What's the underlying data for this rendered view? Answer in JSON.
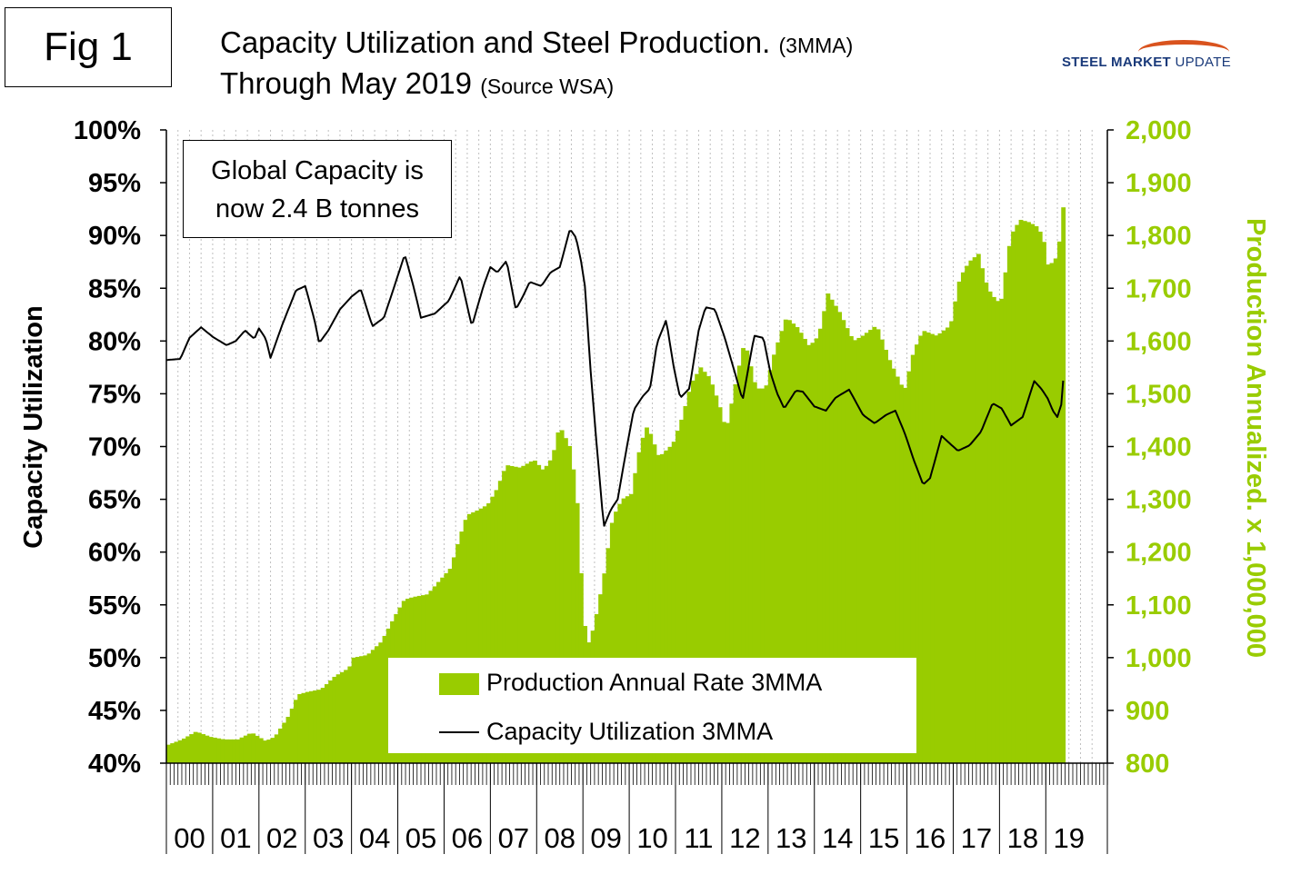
{
  "fig_label": "Fig 1",
  "title": {
    "line1": "Capacity Utilization and Steel Production.",
    "line1_small": "(3MMA)",
    "line2": "Through May 2019",
    "line2_small": "(Source WSA)"
  },
  "logo": {
    "bold": "STEEL MARKET",
    "rest": "UPDATE"
  },
  "annotation": {
    "line1": "Global Capacity is",
    "line2": "now 2.4 B tonnes"
  },
  "colors": {
    "production": "#99cc00",
    "utilization": "#000000",
    "right_axis": "#99cc00",
    "grid": "#bfbfbf"
  },
  "chart_data": {
    "type": "bar",
    "subtype": "bar+line dual axis",
    "x_axis": {
      "tick_labels": [
        "00",
        "01",
        "02",
        "03",
        "04",
        "05",
        "06",
        "07",
        "08",
        "09",
        "10",
        "11",
        "12",
        "13",
        "14",
        "15",
        "16",
        "17",
        "18",
        "19"
      ]
    },
    "y_left": {
      "label": "Capacity Utilization",
      "range": [
        40,
        100
      ],
      "step": 5,
      "tick_labels": [
        "40%",
        "45%",
        "50%",
        "55%",
        "60%",
        "65%",
        "70%",
        "75%",
        "80%",
        "85%",
        "90%",
        "95%",
        "100%"
      ]
    },
    "y_right": {
      "label": "Production Annualized. x 1,000,000",
      "range": [
        800,
        2000
      ],
      "step": 100,
      "tick_labels": [
        "800",
        "900",
        "1,000",
        "1,100",
        "1,200",
        "1,300",
        "1,400",
        "1,500",
        "1,600",
        "1,700",
        "1,800",
        "1,900",
        "2,000"
      ]
    },
    "grid": "vertical dashed",
    "legend": {
      "position": "bottom-center",
      "entries": [
        "Production Annual Rate 3MMA",
        "Capacity Utilization 3MMA"
      ]
    },
    "series": [
      {
        "name": "Production Annual Rate 3MMA",
        "kind": "bar",
        "axis": "right",
        "anchors": [
          [
            2000.0,
            835
          ],
          [
            2000.3,
            845
          ],
          [
            2000.6,
            860
          ],
          [
            2000.9,
            850
          ],
          [
            2001.2,
            845
          ],
          [
            2001.5,
            845
          ],
          [
            2001.8,
            858
          ],
          [
            2002.1,
            842
          ],
          [
            2002.3,
            850
          ],
          [
            2002.6,
            890
          ],
          [
            2002.8,
            930
          ],
          [
            2003.0,
            935
          ],
          [
            2003.3,
            940
          ],
          [
            2003.6,
            965
          ],
          [
            2003.9,
            980
          ],
          [
            2004.0,
            1000
          ],
          [
            2004.3,
            1005
          ],
          [
            2004.6,
            1030
          ],
          [
            2004.9,
            1080
          ],
          [
            2005.1,
            1110
          ],
          [
            2005.3,
            1115
          ],
          [
            2005.6,
            1120
          ],
          [
            2005.9,
            1150
          ],
          [
            2006.1,
            1170
          ],
          [
            2006.3,
            1230
          ],
          [
            2006.45,
            1270
          ],
          [
            2006.7,
            1280
          ],
          [
            2006.9,
            1290
          ],
          [
            2007.1,
            1320
          ],
          [
            2007.3,
            1365
          ],
          [
            2007.6,
            1360
          ],
          [
            2007.9,
            1375
          ],
          [
            2008.1,
            1355
          ],
          [
            2008.3,
            1380
          ],
          [
            2008.45,
            1440
          ],
          [
            2008.7,
            1395
          ],
          [
            2008.85,
            1280
          ],
          [
            2008.95,
            1100
          ],
          [
            2009.05,
            1020
          ],
          [
            2009.2,
            1060
          ],
          [
            2009.4,
            1150
          ],
          [
            2009.6,
            1265
          ],
          [
            2009.8,
            1300
          ],
          [
            2010.0,
            1310
          ],
          [
            2010.2,
            1405
          ],
          [
            2010.35,
            1440
          ],
          [
            2010.6,
            1380
          ],
          [
            2010.9,
            1405
          ],
          [
            2011.1,
            1455
          ],
          [
            2011.3,
            1520
          ],
          [
            2011.5,
            1550
          ],
          [
            2011.7,
            1530
          ],
          [
            2011.9,
            1480
          ],
          [
            2012.05,
            1430
          ],
          [
            2012.3,
            1540
          ],
          [
            2012.45,
            1600
          ],
          [
            2012.7,
            1510
          ],
          [
            2012.9,
            1510
          ],
          [
            2013.1,
            1580
          ],
          [
            2013.35,
            1645
          ],
          [
            2013.6,
            1625
          ],
          [
            2013.85,
            1590
          ],
          [
            2014.05,
            1610
          ],
          [
            2014.25,
            1690
          ],
          [
            2014.5,
            1655
          ],
          [
            2014.8,
            1600
          ],
          [
            2015.0,
            1610
          ],
          [
            2015.3,
            1630
          ],
          [
            2015.6,
            1560
          ],
          [
            2015.9,
            1505
          ],
          [
            2016.1,
            1580
          ],
          [
            2016.3,
            1620
          ],
          [
            2016.6,
            1610
          ],
          [
            2016.9,
            1630
          ],
          [
            2017.1,
            1720
          ],
          [
            2017.3,
            1750
          ],
          [
            2017.5,
            1765
          ],
          [
            2017.7,
            1700
          ],
          [
            2017.9,
            1675
          ],
          [
            2018.0,
            1680
          ],
          [
            2018.2,
            1800
          ],
          [
            2018.4,
            1830
          ],
          [
            2018.6,
            1825
          ],
          [
            2018.8,
            1815
          ],
          [
            2018.95,
            1780
          ],
          [
            2019.0,
            1745
          ],
          [
            2019.15,
            1750
          ],
          [
            2019.28,
            1800
          ],
          [
            2019.38,
            1900
          ]
        ]
      },
      {
        "name": "Capacity Utilization 3MMA",
        "kind": "line",
        "axis": "left",
        "anchors": [
          [
            2000.0,
            78.2
          ],
          [
            2000.3,
            78.3
          ],
          [
            2000.5,
            80.3
          ],
          [
            2000.75,
            81.3
          ],
          [
            2001.0,
            80.4
          ],
          [
            2001.3,
            79.6
          ],
          [
            2001.5,
            80
          ],
          [
            2001.7,
            81
          ],
          [
            2001.9,
            80.2
          ],
          [
            2002.0,
            81.2
          ],
          [
            2002.15,
            80.2
          ],
          [
            2002.25,
            78.4
          ],
          [
            2002.5,
            81.5
          ],
          [
            2002.8,
            84.8
          ],
          [
            2003.0,
            85.2
          ],
          [
            2003.2,
            82
          ],
          [
            2003.3,
            79.8
          ],
          [
            2003.5,
            81
          ],
          [
            2003.75,
            83
          ],
          [
            2004.0,
            84.2
          ],
          [
            2004.2,
            84.9
          ],
          [
            2004.45,
            81.4
          ],
          [
            2004.7,
            82.2
          ],
          [
            2004.95,
            85.5
          ],
          [
            2005.15,
            88.2
          ],
          [
            2005.35,
            85
          ],
          [
            2005.5,
            82.2
          ],
          [
            2005.8,
            82.6
          ],
          [
            2006.1,
            83.8
          ],
          [
            2006.35,
            86.2
          ],
          [
            2006.6,
            81.4
          ],
          [
            2006.85,
            85.2
          ],
          [
            2007.0,
            87
          ],
          [
            2007.15,
            86.5
          ],
          [
            2007.35,
            87.6
          ],
          [
            2007.55,
            83
          ],
          [
            2007.7,
            84.2
          ],
          [
            2007.85,
            85.6
          ],
          [
            2008.1,
            85.2
          ],
          [
            2008.3,
            86.5
          ],
          [
            2008.5,
            87
          ],
          [
            2008.72,
            90.6
          ],
          [
            2008.85,
            89.8
          ],
          [
            2008.95,
            87.8
          ],
          [
            2009.05,
            85
          ],
          [
            2009.15,
            78
          ],
          [
            2009.3,
            70
          ],
          [
            2009.45,
            62.4
          ],
          [
            2009.6,
            64
          ],
          [
            2009.75,
            65
          ],
          [
            2009.95,
            70
          ],
          [
            2010.1,
            73.5
          ],
          [
            2010.3,
            74.8
          ],
          [
            2010.45,
            75.5
          ],
          [
            2010.6,
            79.8
          ],
          [
            2010.8,
            82
          ],
          [
            2010.95,
            77.8
          ],
          [
            2011.1,
            74.6
          ],
          [
            2011.3,
            75.5
          ],
          [
            2011.5,
            81
          ],
          [
            2011.65,
            83.2
          ],
          [
            2011.85,
            83
          ],
          [
            2012.05,
            80.5
          ],
          [
            2012.25,
            77.5
          ],
          [
            2012.45,
            74.4
          ],
          [
            2012.7,
            80.5
          ],
          [
            2012.9,
            80.3
          ],
          [
            2013.05,
            77
          ],
          [
            2013.2,
            75
          ],
          [
            2013.35,
            73.6
          ],
          [
            2013.6,
            75.3
          ],
          [
            2013.75,
            75.2
          ],
          [
            2014.0,
            73.8
          ],
          [
            2014.25,
            73.4
          ],
          [
            2014.45,
            74.6
          ],
          [
            2014.75,
            75.4
          ],
          [
            2015.05,
            73
          ],
          [
            2015.3,
            72.2
          ],
          [
            2015.55,
            73
          ],
          [
            2015.75,
            73.4
          ],
          [
            2015.95,
            71.3
          ],
          [
            2016.15,
            68.7
          ],
          [
            2016.35,
            66.4
          ],
          [
            2016.5,
            67
          ],
          [
            2016.75,
            71
          ],
          [
            2016.95,
            70.2
          ],
          [
            2017.1,
            69.6
          ],
          [
            2017.35,
            70.1
          ],
          [
            2017.6,
            71.4
          ],
          [
            2017.85,
            74.1
          ],
          [
            2018.05,
            73.6
          ],
          [
            2018.25,
            72
          ],
          [
            2018.5,
            72.8
          ],
          [
            2018.75,
            76.2
          ],
          [
            2018.9,
            75.5
          ],
          [
            2019.05,
            74.5
          ],
          [
            2019.15,
            73.4
          ],
          [
            2019.25,
            72.8
          ],
          [
            2019.35,
            74.2
          ],
          [
            2019.41,
            79.1
          ]
        ]
      }
    ]
  }
}
